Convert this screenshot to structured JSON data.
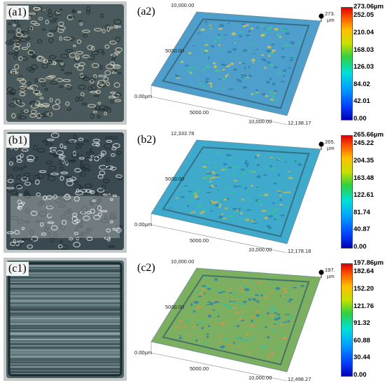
{
  "rows": [
    {
      "photo_label": "(a1)",
      "plot_label": "(a2)",
      "axis": {
        "y_top": "10,000.00",
        "y_mid": "5000.00",
        "origin": "0.00µm",
        "x_mid": "5000.00",
        "x_2": "10,000.00",
        "x_end": "12,138.17"
      },
      "peak": {
        "value": "273.06",
        "unit": "µm"
      },
      "colorbar": [
        "273.06µm",
        "252.05",
        "210.04",
        "168.03",
        "126.03",
        "84.02",
        "42.01",
        "0.00"
      ],
      "colorbar_levels": [
        1.0,
        0.923,
        0.769,
        0.615,
        0.4615,
        0.3077,
        0.1538,
        0.0
      ],
      "colors": {
        "photo_base": "#4a5a5c",
        "photo_light": "#d8d4c0",
        "surface_base": "#4f9fcc",
        "surface_hi": "#e0c34a"
      }
    },
    {
      "photo_label": "(b1)",
      "plot_label": "(b2)",
      "axis": {
        "y_top": "12,333.78",
        "y_mid": "5000.00",
        "origin": "0.00µm",
        "x_mid": "5000.00",
        "x_2": "10,000.00",
        "x_end": "12,178.18"
      },
      "peak": {
        "value": "265.66",
        "unit": "µm"
      },
      "colorbar": [
        "265.66µm",
        "245.22",
        "204.35",
        "163.48",
        "122.61",
        "81.74",
        "40.87",
        "0.00"
      ],
      "colorbar_levels": [
        1.0,
        0.923,
        0.769,
        0.615,
        0.4615,
        0.3077,
        0.1538,
        0.0
      ],
      "colors": {
        "photo_base": "#3a4a50",
        "photo_light": "#e4e8ea",
        "surface_base": "#3faacc",
        "surface_hi": "#d0b848"
      }
    },
    {
      "photo_label": "(c1)",
      "plot_label": "(c2)",
      "axis": {
        "y_top": "10,000.00",
        "y_mid": "5000.00",
        "origin": "0.00µm",
        "x_mid": "5000.00",
        "x_2": "10,000.00",
        "x_end": "12,498.27"
      },
      "peak": {
        "value": "197.86",
        "unit": "µm"
      },
      "colorbar": [
        "197.86µm",
        "182.64",
        "152.20",
        "121.76",
        "91.32",
        "60.88",
        "30.44",
        "0.00"
      ],
      "colorbar_levels": [
        1.0,
        0.923,
        0.769,
        0.615,
        0.4615,
        0.3077,
        0.1538,
        0.0
      ],
      "colors": {
        "photo_base": "#4a6468",
        "photo_light": "#a8c0c4",
        "surface_base": "#7cb060",
        "surface_hi": "#c89a48"
      }
    }
  ]
}
